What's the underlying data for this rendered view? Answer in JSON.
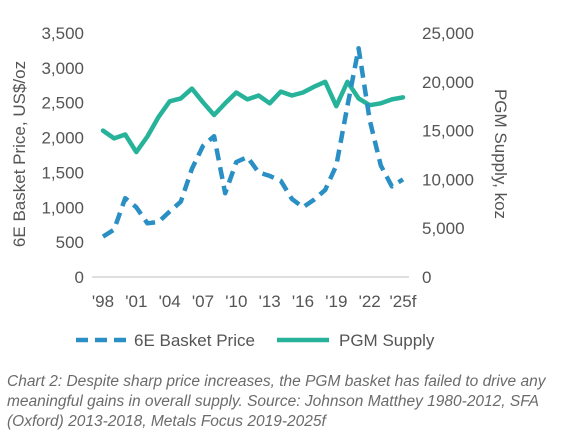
{
  "chart_data": {
    "type": "line",
    "x": [
      "1998",
      "1999",
      "2000",
      "2001",
      "2002",
      "2003",
      "2004",
      "2005",
      "2006",
      "2007",
      "2008",
      "2009",
      "2010",
      "2011",
      "2012",
      "2013",
      "2014",
      "2015",
      "2016",
      "2017",
      "2018",
      "2019",
      "2020",
      "2021",
      "2022",
      "2023",
      "2024",
      "2025"
    ],
    "x_tick_labels": [
      "'98",
      "'01",
      "'04",
      "'07",
      "'10",
      "'13",
      "'16",
      "'19",
      "'22",
      "'25f"
    ],
    "series": [
      {
        "name": "6E Basket Price",
        "axis": "left",
        "style": "dashed",
        "color": "#2a8fc4",
        "values": [
          580,
          680,
          1130,
          1000,
          770,
          790,
          940,
          1080,
          1550,
          1880,
          2020,
          1200,
          1650,
          1720,
          1500,
          1450,
          1380,
          1120,
          1000,
          1110,
          1250,
          1600,
          2450,
          3280,
          2250,
          1600,
          1300,
          1400
        ]
      },
      {
        "name": "PGM Supply",
        "axis": "right",
        "style": "solid",
        "color": "#26b39a",
        "values": [
          15000,
          14200,
          14600,
          12800,
          14400,
          16400,
          18000,
          18300,
          19300,
          17900,
          16600,
          17800,
          18900,
          18200,
          18600,
          17800,
          19000,
          18600,
          18900,
          19500,
          20000,
          17500,
          20000,
          18300,
          17600,
          17800,
          18200,
          18400
        ]
      }
    ],
    "y_left": {
      "label": "6E Basket  Price, US$/oz",
      "range": [
        0,
        3500
      ],
      "ticks": [
        "0",
        "500",
        "1,000",
        "1,500",
        "2,000",
        "2,500",
        "3,000",
        "3,500"
      ]
    },
    "y_right": {
      "label": "PGM Supply, koz",
      "range": [
        0,
        25000
      ],
      "ticks": [
        "0",
        "5,000",
        "10,000",
        "15,000",
        "20,000",
        "25,000"
      ]
    },
    "grid": false,
    "legend_position": "bottom"
  },
  "caption": "Chart 2: Despite sharp price increases, the PGM basket has failed to drive any meaningful gains in overall supply. Source: Johnson Matthey 1980-2012, SFA (Oxford) 2013-2018, Metals Focus 2019-2025f"
}
